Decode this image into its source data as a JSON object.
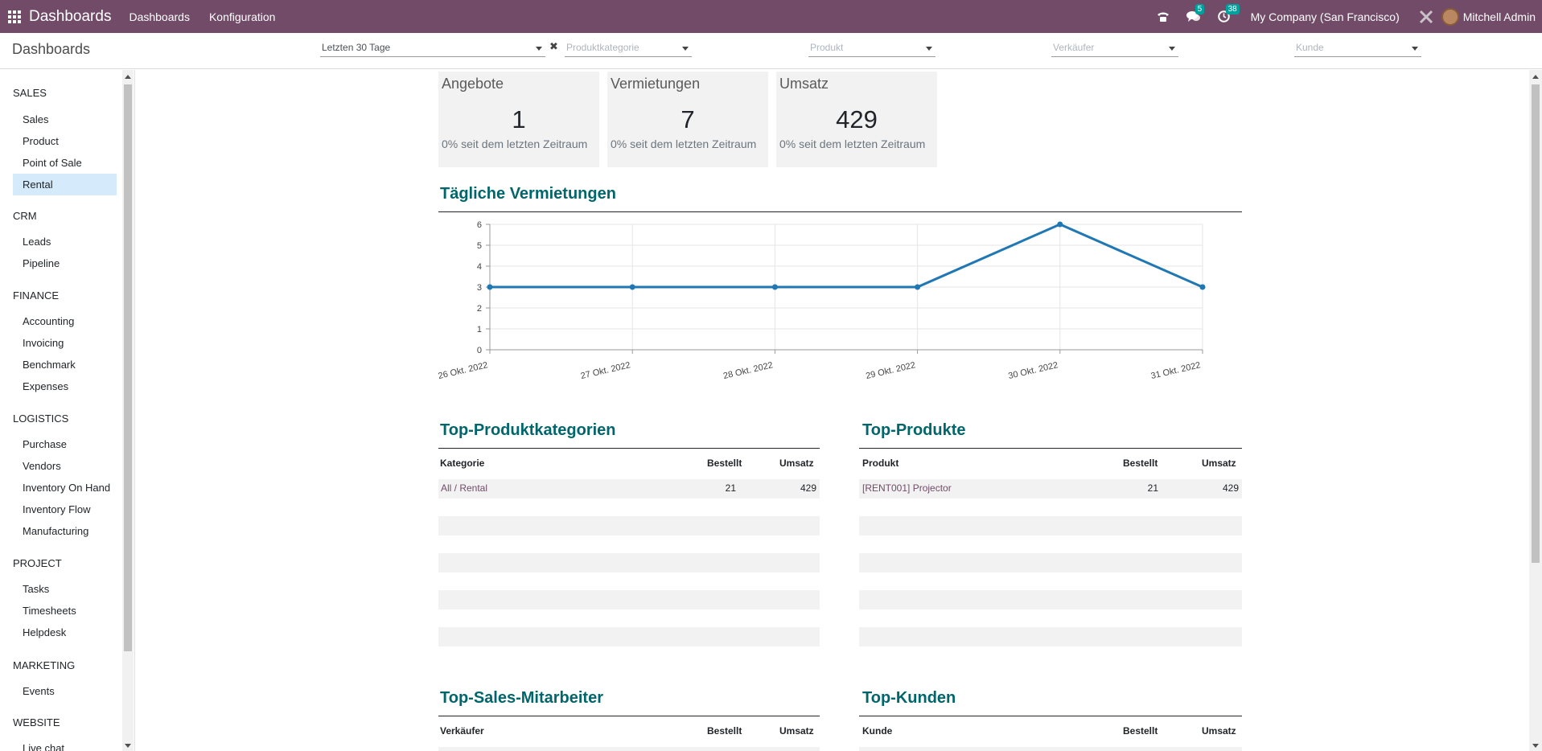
{
  "navbar": {
    "brand": "Dashboards",
    "menus": [
      "Dashboards",
      "Konfiguration"
    ],
    "messages_count": "5",
    "activities_count": "38",
    "company": "My Company (San Francisco)",
    "user": "Mitchell Admin",
    "accent": "#714b67"
  },
  "control": {
    "title": "Dashboards",
    "period": "Letzten 30 Tage",
    "filters": {
      "category": "Produktkategorie",
      "product": "Produkt",
      "salesperson": "Verkäufer",
      "customer": "Kunde"
    }
  },
  "sidebar": {
    "sections": [
      {
        "name": "SALES",
        "items": [
          "Sales",
          "Product",
          "Point of Sale",
          "Rental"
        ]
      },
      {
        "name": "CRM",
        "items": [
          "Leads",
          "Pipeline"
        ]
      },
      {
        "name": "FINANCE",
        "items": [
          "Accounting",
          "Invoicing",
          "Benchmark",
          "Expenses"
        ]
      },
      {
        "name": "LOGISTICS",
        "items": [
          "Purchase",
          "Vendors",
          "Inventory On Hand",
          "Inventory Flow",
          "Manufacturing"
        ]
      },
      {
        "name": "PROJECT",
        "items": [
          "Tasks",
          "Timesheets",
          "Helpdesk"
        ]
      },
      {
        "name": "MARKETING",
        "items": [
          "Events"
        ]
      },
      {
        "name": "WEBSITE",
        "items": [
          "Live chat"
        ]
      }
    ],
    "active_item": "Rental"
  },
  "kpis": [
    {
      "label": "Angebote",
      "value": "1",
      "sub": "0% seit dem letzten Zeitraum"
    },
    {
      "label": "Vermietungen",
      "value": "7",
      "sub": "0% seit dem letzten Zeitraum"
    },
    {
      "label": "Umsatz",
      "value": "429",
      "sub": "0% seit dem letzten Zeitraum"
    }
  ],
  "daily_section": {
    "title": "Tägliche Vermietungen"
  },
  "chart_data": {
    "type": "line",
    "title": "",
    "xlabel": "",
    "ylabel": "",
    "categories": [
      "26 Okt. 2022",
      "27 Okt. 2022",
      "28 Okt. 2022",
      "29 Okt. 2022",
      "30 Okt. 2022",
      "31 Okt. 2022"
    ],
    "values": [
      3,
      3,
      3,
      3,
      6,
      3
    ],
    "ylim": [
      0,
      6
    ],
    "yticks": [
      "0",
      "1",
      "2",
      "3",
      "4",
      "5",
      "6"
    ],
    "grid": true,
    "legend": "none",
    "color": "#1f77b4"
  },
  "top_categories": {
    "title": "Top-Produktkategorien",
    "headers": [
      "Kategorie",
      "Bestellt",
      "Umsatz"
    ],
    "rows": [
      {
        "name": "All / Rental",
        "ordered": "21",
        "revenue": "429"
      }
    ]
  },
  "top_products": {
    "title": "Top-Produkte",
    "headers": [
      "Produkt",
      "Bestellt",
      "Umsatz"
    ],
    "rows": [
      {
        "name": "[RENT001] Projector",
        "ordered": "21",
        "revenue": "429"
      }
    ]
  },
  "top_sales": {
    "title": "Top-Sales-Mitarbeiter",
    "headers": [
      "Verkäufer",
      "Bestellt",
      "Umsatz"
    ]
  },
  "top_customers": {
    "title": "Top-Kunden",
    "headers": [
      "Kunde",
      "Bestellt",
      "Umsatz"
    ]
  }
}
